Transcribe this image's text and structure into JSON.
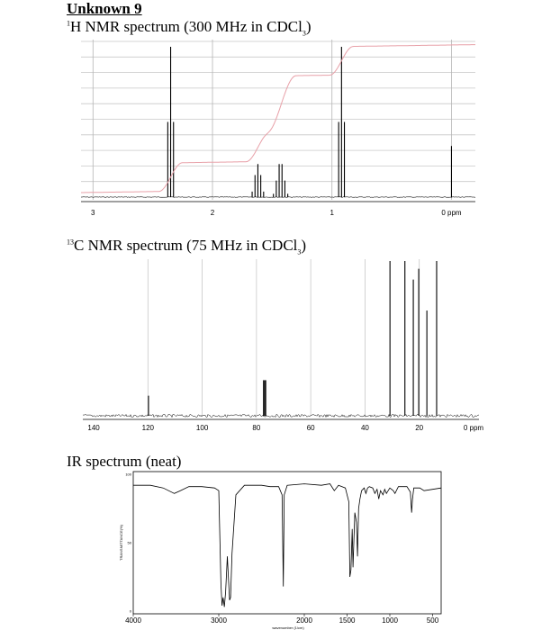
{
  "page": {
    "title": "Unknown 9",
    "h_heading": {
      "sup": "1",
      "pre": "H NMR spectrum (300 MHz in CDCl",
      "sub": "3",
      "post": ")"
    },
    "c_heading": {
      "sup": "13",
      "pre": "C NMR spectrum (75 MHz in CDCl",
      "sub": "3",
      "post": ")"
    },
    "ir_heading": "IR spectrum (neat)"
  },
  "colors": {
    "integral": "#e8a0a8",
    "grid": "#c8c8c8",
    "trace": "#000000"
  },
  "chart_data": [
    {
      "type": "line",
      "name": "1H NMR",
      "x_reversed": true,
      "xlim": [
        3.1,
        -0.2
      ],
      "x_ticks": [
        {
          "v": 3,
          "label": "3"
        },
        {
          "v": 2,
          "label": "2"
        },
        {
          "v": 1,
          "label": "1"
        },
        {
          "v": 0,
          "label": "0 ppm"
        }
      ],
      "grid_x": [
        3,
        2,
        1,
        0
      ],
      "peaks": [
        {
          "shift": 2.35,
          "mult": 3,
          "J": 0.024,
          "height": 1.0
        },
        {
          "shift": 1.62,
          "mult": 5,
          "J": 0.024,
          "height": 0.22
        },
        {
          "shift": 1.43,
          "mult": 6,
          "J": 0.024,
          "height": 0.22
        },
        {
          "shift": 0.92,
          "mult": 3,
          "J": 0.024,
          "height": 1.0
        },
        {
          "shift": 0.0,
          "mult": 1,
          "J": 0,
          "height": 0.34
        }
      ],
      "integral": {
        "ranges": [
          [
            2.45,
            2.25
          ],
          [
            1.72,
            1.52
          ],
          [
            1.55,
            1.3
          ],
          [
            1.02,
            0.82
          ]
        ],
        "steps": [
          0.2,
          0.2,
          0.4,
          0.2
        ]
      }
    },
    {
      "type": "line",
      "name": "13C NMR",
      "x_reversed": true,
      "xlim": [
        144,
        -2
      ],
      "x_ticks": [
        {
          "v": 140,
          "label": "140"
        },
        {
          "v": 120,
          "label": "120"
        },
        {
          "v": 100,
          "label": "100"
        },
        {
          "v": 80,
          "label": "80"
        },
        {
          "v": 60,
          "label": "60"
        },
        {
          "v": 40,
          "label": "40"
        },
        {
          "v": 20,
          "label": "20"
        },
        {
          "v": 0,
          "label": "0 ppm"
        }
      ],
      "grid_x": [
        120,
        100,
        80,
        60,
        40,
        20
      ],
      "peaks": [
        {
          "shift": 119.8,
          "height": 0.13
        },
        {
          "shift": 77.4,
          "height": 0.23
        },
        {
          "shift": 77.0,
          "height": 0.23
        },
        {
          "shift": 76.6,
          "height": 0.23
        },
        {
          "shift": 30.8,
          "height": 1.0
        },
        {
          "shift": 25.3,
          "height": 1.0
        },
        {
          "shift": 22.2,
          "height": 0.88
        },
        {
          "shift": 20.2,
          "height": 0.95
        },
        {
          "shift": 17.2,
          "height": 0.68
        },
        {
          "shift": 13.6,
          "height": 1.0
        }
      ]
    },
    {
      "type": "line",
      "name": "IR",
      "x_reversed": true,
      "xlim": [
        4000,
        400
      ],
      "ylim": [
        0,
        100
      ],
      "ylabel": "TRANSMITTANCE(%)",
      "xlabel": "wavenumber (1/cm)",
      "x_ticks": [
        {
          "v": 4000,
          "label": "4000"
        },
        {
          "v": 3000,
          "label": "3000"
        },
        {
          "v": 2000,
          "label": "2000"
        },
        {
          "v": 1500,
          "label": "1500"
        },
        {
          "v": 1000,
          "label": "1000"
        },
        {
          "v": 500,
          "label": "500"
        }
      ],
      "y_ticks": [
        {
          "v": 100,
          "label": "100"
        },
        {
          "v": 50,
          "label": "50"
        },
        {
          "v": 0,
          "label": "0"
        }
      ],
      "points": [
        [
          4000,
          92
        ],
        [
          3800,
          92
        ],
        [
          3650,
          90
        ],
        [
          3520,
          86
        ],
        [
          3450,
          88
        ],
        [
          3350,
          91
        ],
        [
          3200,
          91
        ],
        [
          3050,
          90
        ],
        [
          3000,
          88
        ],
        [
          2975,
          20
        ],
        [
          2962,
          4
        ],
        [
          2950,
          10
        ],
        [
          2935,
          3
        ],
        [
          2920,
          14
        ],
        [
          2900,
          40
        ],
        [
          2874,
          8
        ],
        [
          2862,
          10
        ],
        [
          2845,
          42
        ],
        [
          2800,
          85
        ],
        [
          2700,
          92
        ],
        [
          2500,
          92
        ],
        [
          2400,
          91
        ],
        [
          2300,
          91
        ],
        [
          2260,
          85
        ],
        [
          2245,
          18
        ],
        [
          2235,
          85
        ],
        [
          2200,
          92
        ],
        [
          2000,
          93
        ],
        [
          1800,
          92
        ],
        [
          1700,
          93
        ],
        [
          1650,
          88
        ],
        [
          1600,
          92
        ],
        [
          1520,
          90
        ],
        [
          1480,
          80
        ],
        [
          1467,
          25
        ],
        [
          1455,
          30
        ],
        [
          1440,
          60
        ],
        [
          1430,
          32
        ],
        [
          1410,
          72
        ],
        [
          1390,
          65
        ],
        [
          1378,
          40
        ],
        [
          1365,
          75
        ],
        [
          1350,
          82
        ],
        [
          1330,
          88
        ],
        [
          1300,
          90
        ],
        [
          1280,
          86
        ],
        [
          1260,
          90
        ],
        [
          1240,
          91
        ],
        [
          1200,
          90
        ],
        [
          1175,
          86
        ],
        [
          1150,
          89
        ],
        [
          1130,
          82
        ],
        [
          1110,
          88
        ],
        [
          1080,
          85
        ],
        [
          1060,
          89
        ],
        [
          1040,
          86
        ],
        [
          1000,
          90
        ],
        [
          960,
          88
        ],
        [
          940,
          86
        ],
        [
          900,
          91
        ],
        [
          800,
          91
        ],
        [
          760,
          87
        ],
        [
          745,
          72
        ],
        [
          735,
          82
        ],
        [
          720,
          90
        ],
        [
          650,
          90
        ],
        [
          600,
          88
        ],
        [
          500,
          89
        ],
        [
          400,
          90
        ]
      ]
    }
  ]
}
